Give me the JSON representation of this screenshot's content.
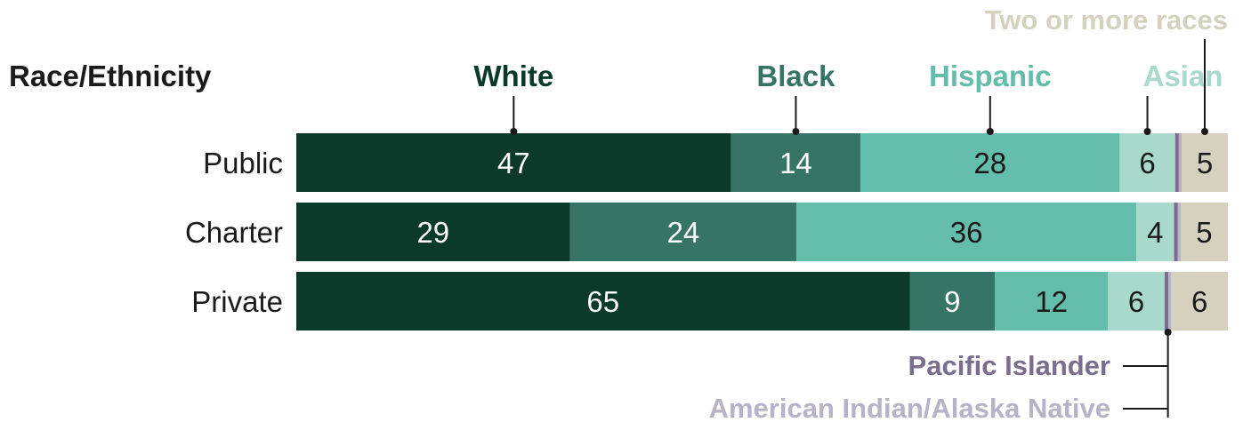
{
  "chart_data": {
    "type": "bar",
    "orientation": "horizontal",
    "stacked": true,
    "title": "Race/Ethnicity",
    "categories": [
      "Public",
      "Charter",
      "Private"
    ],
    "series": [
      {
        "name": "White",
        "values": [
          47,
          29,
          65
        ],
        "color": "#0b3a2a"
      },
      {
        "name": "Black",
        "values": [
          14,
          24,
          9
        ],
        "color": "#367565"
      },
      {
        "name": "Hispanic",
        "values": [
          28,
          36,
          12
        ],
        "color": "#64bcaa"
      },
      {
        "name": "Asian",
        "values": [
          6,
          4,
          6
        ],
        "color": "#a8d9cc"
      },
      {
        "name": "Pacific Islander",
        "values": [
          0.4,
          0.4,
          0.4
        ],
        "color": "#7b6d8d"
      },
      {
        "name": "American Indian/Alaska Native",
        "values": [
          0.3,
          0.3,
          0.3
        ],
        "color": "#b8b2c6"
      },
      {
        "name": "Two or more races",
        "values": [
          5,
          5,
          6
        ],
        "color": "#d6d1bf"
      }
    ],
    "data_labels": [
      [
        "47",
        "14",
        "28",
        "6",
        "",
        "",
        "5"
      ],
      [
        "29",
        "24",
        "36",
        "4",
        "",
        "",
        "5"
      ],
      [
        "65",
        "9",
        "12",
        "6",
        "",
        "",
        "6"
      ]
    ],
    "legend_placement": "callouts above and below bars",
    "grid": false
  }
}
